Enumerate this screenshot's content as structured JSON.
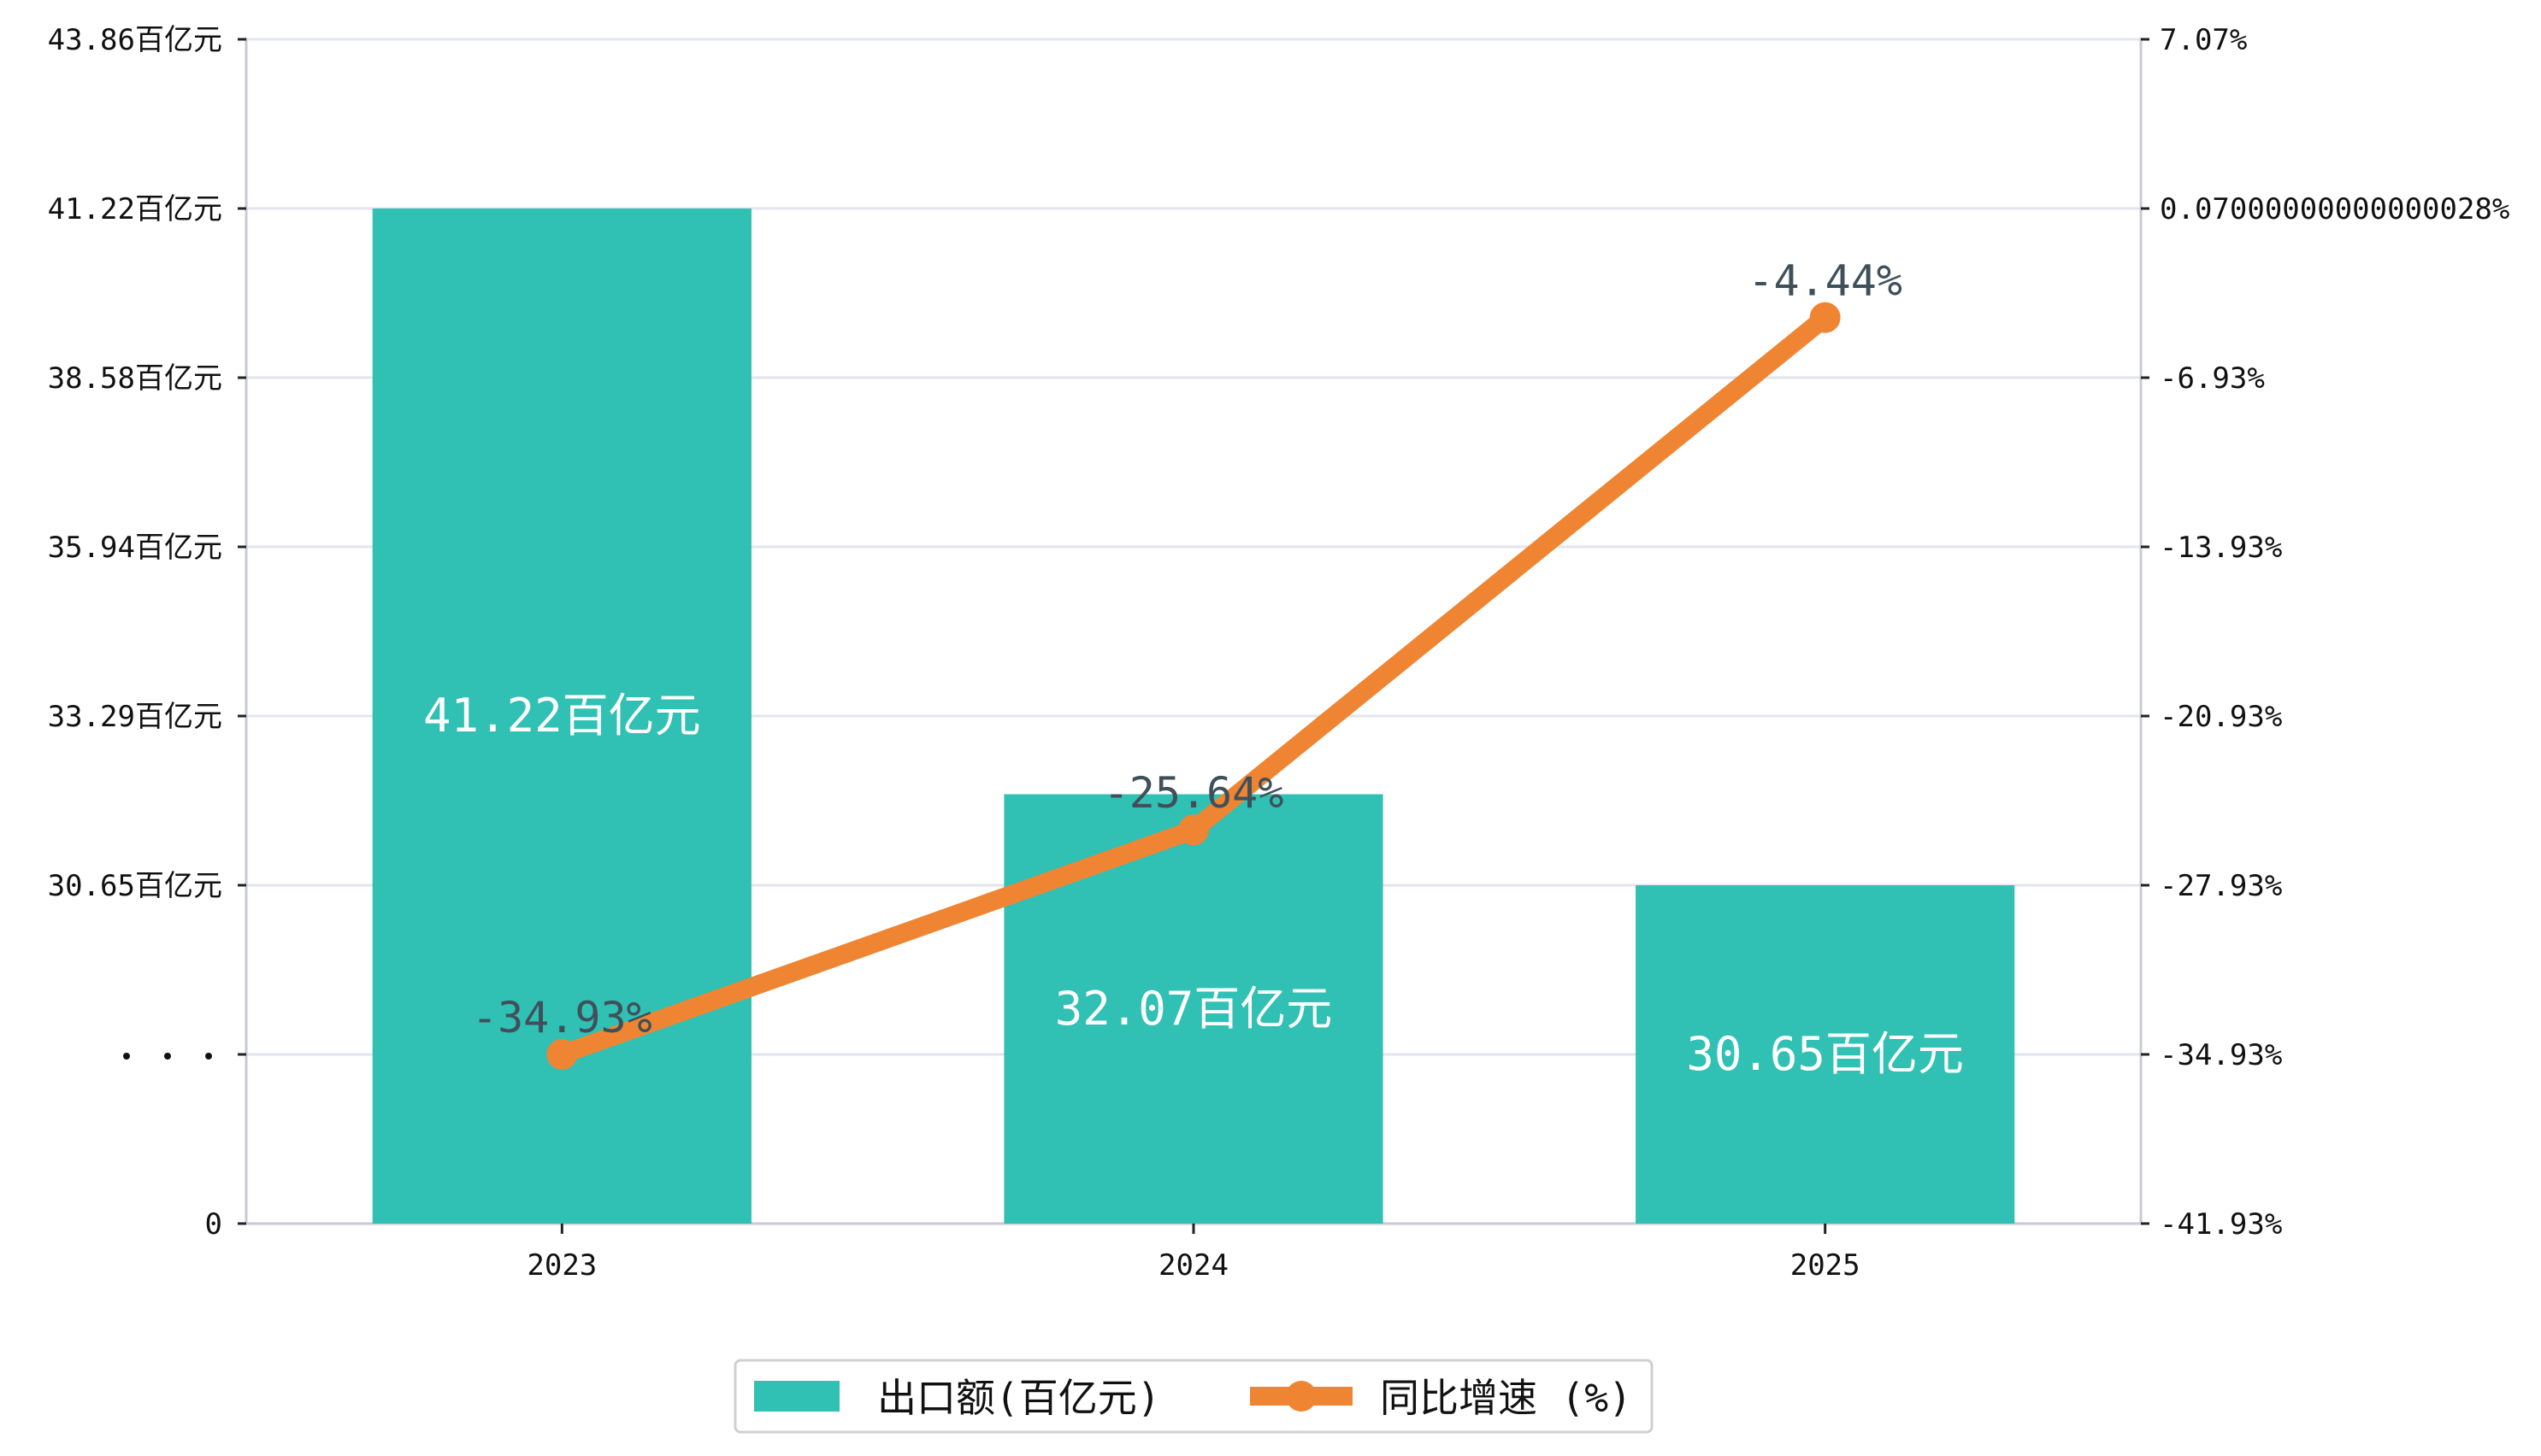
{
  "chart_data": {
    "type": "bar",
    "categories": [
      "2023",
      "2024",
      "2025"
    ],
    "series": [
      {
        "name": "出口额(百亿元)",
        "type": "bar",
        "axis": "left",
        "values": [
          41.22,
          32.07,
          30.65
        ],
        "labels": [
          "41.22百亿元",
          "32.07百亿元",
          "30.65百亿元"
        ],
        "color": "#31c0b4"
      },
      {
        "name": "同比增速 (%)",
        "type": "line",
        "axis": "right",
        "values": [
          -34.93,
          -25.64,
          -4.44
        ],
        "labels": [
          "-34.93%",
          "-25.64%",
          "-4.44%"
        ],
        "color": "#ef8533"
      }
    ],
    "y_left": {
      "ticks": [
        {
          "value": 0,
          "label": "0"
        },
        {
          "value": 28.0,
          "label": "..."
        },
        {
          "value": 30.65,
          "label": "30.65百亿元"
        },
        {
          "value": 33.29,
          "label": "33.29百亿元"
        },
        {
          "value": 35.94,
          "label": "35.94百亿元"
        },
        {
          "value": 38.58,
          "label": "38.58百亿元"
        },
        {
          "value": 41.22,
          "label": "41.22百亿元"
        },
        {
          "value": 43.86,
          "label": "43.86百亿元"
        }
      ],
      "axis_break": true
    },
    "y_right": {
      "ticks": [
        {
          "value": -41.93,
          "label": "-41.93%"
        },
        {
          "value": -34.93,
          "label": "-34.93%"
        },
        {
          "value": -27.93,
          "label": "-27.93%"
        },
        {
          "value": -20.93,
          "label": "-20.93%"
        },
        {
          "value": -13.93,
          "label": "-13.93%"
        },
        {
          "value": -6.93,
          "label": "-6.93%"
        },
        {
          "value": 0.07,
          "label": "0.07000000000000028%"
        },
        {
          "value": 7.07,
          "label": "7.07%"
        }
      ],
      "ylim": [
        -41.93,
        7.07
      ]
    },
    "grid": true,
    "legend_position": "bottom-center"
  },
  "colors": {
    "bar": "#31c0b4",
    "line": "#ef8533",
    "grid": "#e3e4ee",
    "axis": "#c9cad6"
  }
}
